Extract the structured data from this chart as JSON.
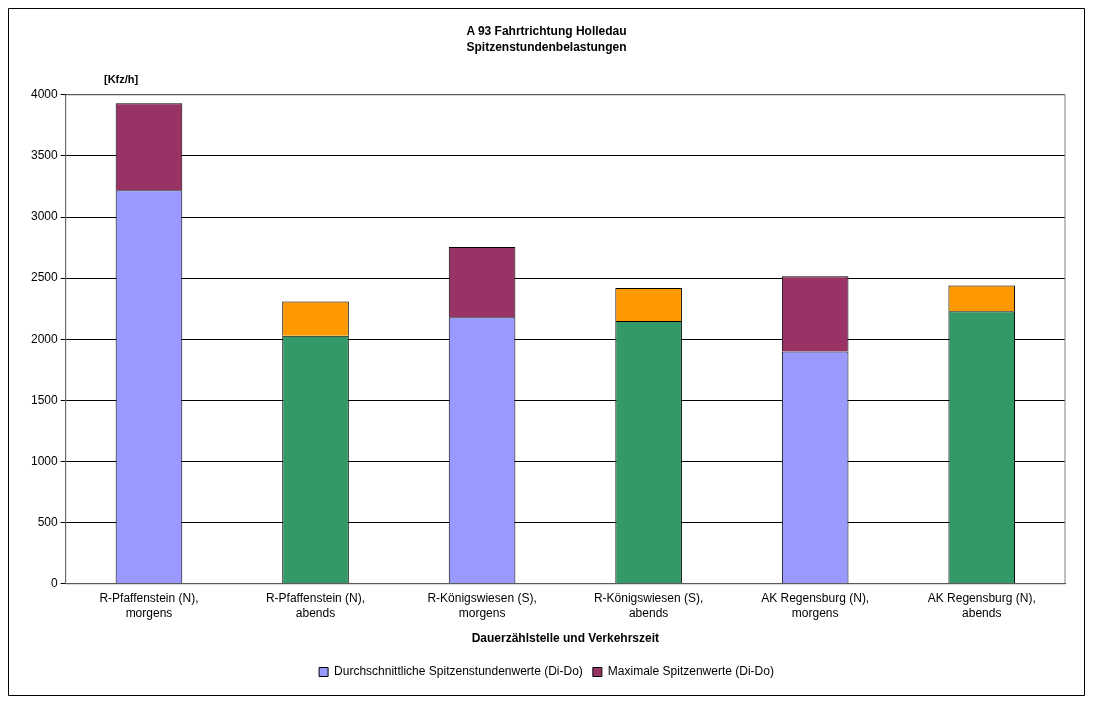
{
  "chart_data": {
    "type": "bar",
    "title": "A 93 Fahrtrichtung Holledau",
    "subtitle": "Spitzenstundenbelastungen",
    "ylabel": "[Kfz/h]",
    "xlabel": "Dauerzählstelle und Verkehrszeit",
    "categories": [
      "R-Pfaffenstein (N), morgens",
      "R-Pfaffenstein (N), abends",
      "R-Königswiesen (S), morgens",
      "R-Königswiesen (S), abends",
      "AK Regensburg (N), morgens",
      "AK Regensburg (N), abends"
    ],
    "stacked": true,
    "ylim": [
      0,
      4000
    ],
    "yticks": [
      0,
      500,
      1000,
      1500,
      2000,
      2500,
      3000,
      3500,
      4000
    ],
    "grid": "y",
    "legend": "bottom",
    "series": [
      {
        "name": "Durchschnittliche Spitzenstundenwerte (Di-Do)",
        "color": "#9999ff",
        "colors": [
          "#9999ff",
          "#339966",
          "#9999ff",
          "#339966",
          "#9999ff",
          "#339966"
        ],
        "values": [
          3220,
          2030,
          2180,
          2150,
          1900,
          2230
        ]
      },
      {
        "name": "Maximale Spitzenwerte (Di-Do)",
        "color": "#993366",
        "colors": [
          "#993366",
          "#ff9900",
          "#993366",
          "#ff9900",
          "#993366",
          "#ff9900"
        ],
        "values": [
          710,
          280,
          575,
          270,
          615,
          210
        ]
      }
    ]
  }
}
